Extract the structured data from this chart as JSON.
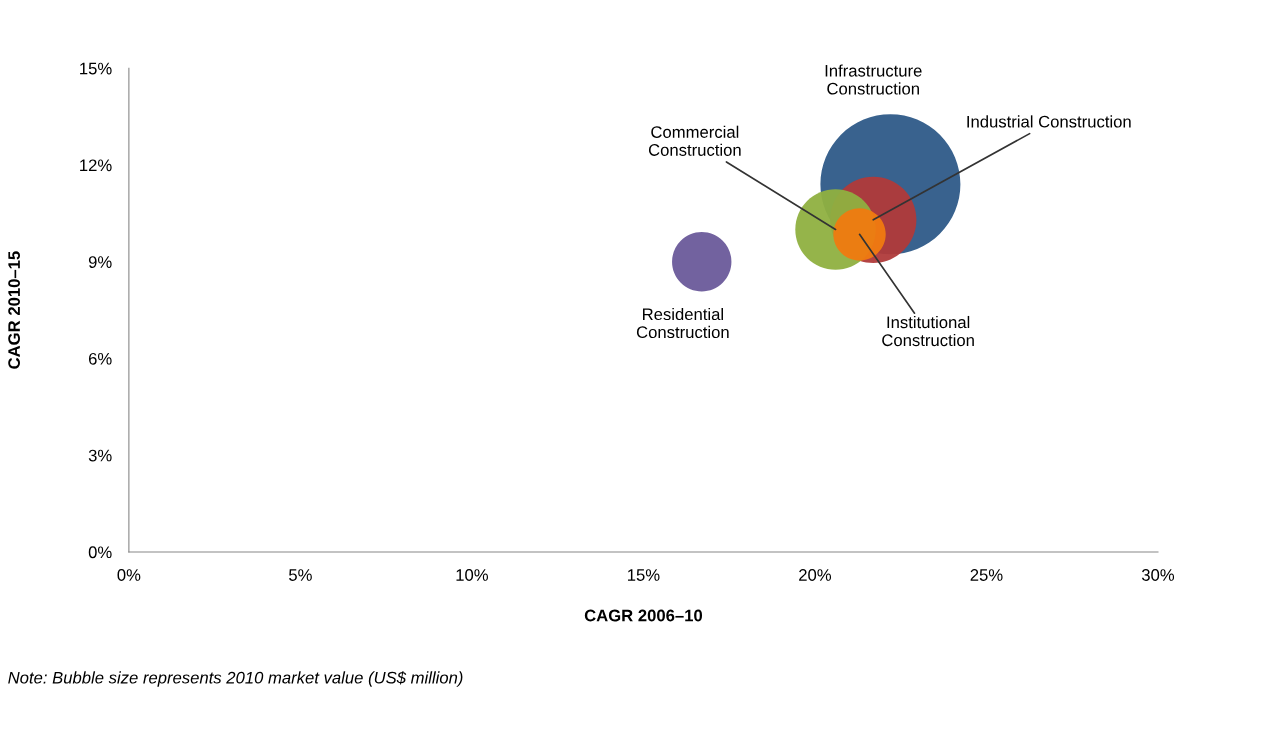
{
  "chart_data": {
    "type": "bubble",
    "xlabel": "CAGR 2006–10",
    "ylabel": "CAGR 2010–15",
    "xlim": [
      0,
      30
    ],
    "ylim": [
      0,
      15
    ],
    "xticks": [
      {
        "value": 0,
        "label": "0%"
      },
      {
        "value": 5,
        "label": "5%"
      },
      {
        "value": 10,
        "label": "10%"
      },
      {
        "value": 15,
        "label": "15%"
      },
      {
        "value": 20,
        "label": "20%"
      },
      {
        "value": 25,
        "label": "25%"
      },
      {
        "value": 30,
        "label": "30%"
      }
    ],
    "yticks": [
      {
        "value": 0,
        "label": "0%"
      },
      {
        "value": 3,
        "label": "3%"
      },
      {
        "value": 6,
        "label": "6%"
      },
      {
        "value": 9,
        "label": "9%"
      },
      {
        "value": 12,
        "label": "12%"
      },
      {
        "value": 15,
        "label": "15%"
      }
    ],
    "grid": false,
    "legend": false,
    "series": [
      {
        "name": "Infrastructure\nConstruction",
        "color": "#2e5a88",
        "x": [
          22.2
        ],
        "values": [
          11.4
        ],
        "sizes": [
          1
        ]
      },
      {
        "name": "Industrial Construction",
        "color": "#b03a3a",
        "x": [
          21.7
        ],
        "values": [
          10.3
        ],
        "sizes": [
          0.38
        ]
      },
      {
        "name": "Commercial\nConstruction",
        "color": "#8fb040",
        "x": [
          20.6
        ],
        "values": [
          10.0
        ],
        "sizes": [
          0.33
        ]
      },
      {
        "name": "Institutional\nConstruction",
        "color": "#f07a10",
        "x": [
          21.3
        ],
        "values": [
          9.85
        ],
        "sizes": [
          0.14
        ]
      },
      {
        "name": "Residential\nConstruction",
        "color": "#6a5a9a",
        "x": [
          16.7
        ],
        "values": [
          9.0
        ],
        "sizes": [
          0.18
        ]
      }
    ],
    "annotations": [
      "Note: Bubble size represents 2010 market value (US$ million)"
    ]
  }
}
